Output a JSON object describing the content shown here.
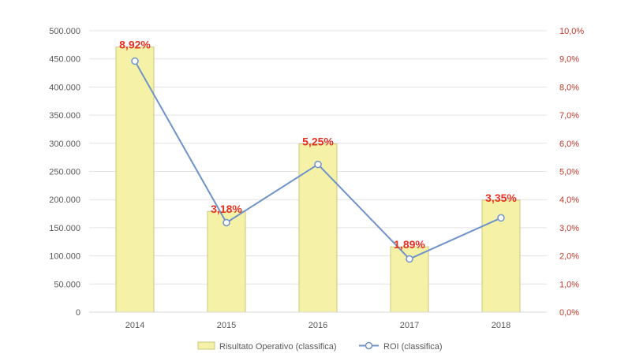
{
  "chart_data": {
    "type": "bar",
    "categories": [
      "2014",
      "2015",
      "2016",
      "2017",
      "2018"
    ],
    "series": [
      {
        "name": "Risultato Operativo (classifica)",
        "kind": "bar",
        "axis": "left",
        "values": [
          471000,
          179000,
          299000,
          116000,
          199000
        ],
        "color": "#F5F2A8",
        "border": "#C9C77E"
      },
      {
        "name": "ROI (classifica)",
        "kind": "line",
        "axis": "right",
        "values": [
          8.92,
          3.18,
          5.25,
          1.89,
          3.35
        ],
        "data_labels": [
          "8,92%",
          "3,18%",
          "5,25%",
          "1,89%",
          "3,35%"
        ],
        "color": "#6F93C9"
      }
    ],
    "left_axis": {
      "ylim": [
        0,
        500000
      ],
      "ticks": [
        "0",
        "50.000",
        "100.000",
        "150.000",
        "200.000",
        "250.000",
        "300.000",
        "350.000",
        "400.000",
        "450.000",
        "500.000"
      ]
    },
    "right_axis": {
      "ylim": [
        0,
        10
      ],
      "ticks": [
        "0,0%",
        "1,0%",
        "2,0%",
        "3,0%",
        "4,0%",
        "5,0%",
        "6,0%",
        "7,0%",
        "8,0%",
        "9,0%",
        "10,0%"
      ],
      "color": "#C0392B"
    },
    "data_label_color": "#E53222",
    "grid": true,
    "legend_position": "bottom"
  }
}
